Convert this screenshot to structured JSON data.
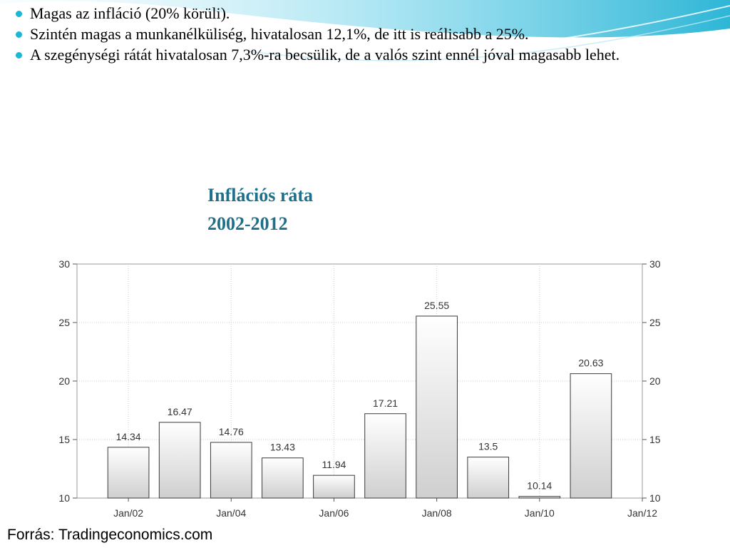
{
  "slide": {
    "bullets": [
      "Magas az infláció (20% körüli).",
      "Szintén magas a munkanélküliség, hivatalosan 12,1%, de itt is reálisabb a 25%.",
      "A szegénységi rátát hivatalosan 7,3%-ra becsülik, de a valós szint ennél jóval magasabb lehet."
    ],
    "title_line1": "Inflációs ráta",
    "title_line2": "2002-2012",
    "source": "Forrás: Tradingeconomics.com",
    "accent_color": "#1f6f8b",
    "bullet_color": "#1bb7d4"
  },
  "chart_data": {
    "type": "bar",
    "title": "Inflációs ráta 2002-2012",
    "xlabel": "",
    "ylabel": "",
    "categories": [
      "2002",
      "2003",
      "2004",
      "2005",
      "2006",
      "2007",
      "2008",
      "2009",
      "2010",
      "2011"
    ],
    "values": [
      14.34,
      16.47,
      14.76,
      13.43,
      11.94,
      17.21,
      25.55,
      13.5,
      10.14,
      20.63
    ],
    "value_labels": [
      "14.34",
      "16.47",
      "14.76",
      "13.43",
      "11.94",
      "17.21",
      "25.55",
      "13.5",
      "10.14",
      "20.63"
    ],
    "x_tick_labels": [
      "Jan/02",
      "Jan/04",
      "Jan/06",
      "Jan/08",
      "Jan/10",
      "Jan/12"
    ],
    "y_ticks": [
      10,
      15,
      20,
      25,
      30
    ],
    "ylim": [
      10,
      30
    ],
    "grid": true,
    "legend": "none",
    "bar_color_top": "#ffffff",
    "bar_color_bottom": "#cfcfcf",
    "bar_stroke": "#3a3a3a"
  }
}
